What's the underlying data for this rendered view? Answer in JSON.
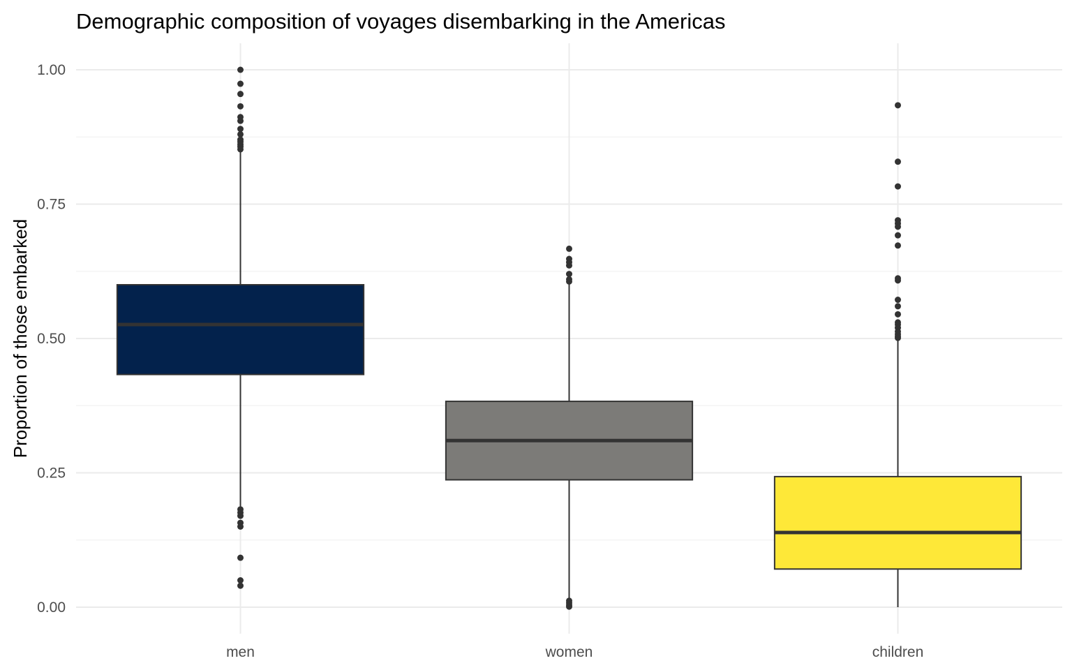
{
  "chart_data": {
    "type": "boxplot",
    "title": "Demographic composition of voyages disembarking in the Americas",
    "xlabel": "",
    "ylabel": "Proportion of those embarked",
    "ylim": [
      -0.045,
      1.045
    ],
    "yticks": [
      0,
      0.25,
      0.5,
      0.75,
      1
    ],
    "ytick_labels": [
      "0.00",
      "0.25",
      "0.50",
      "0.75",
      "1.00"
    ],
    "grid": "major and minor horizontal, major vertical",
    "legend": "none",
    "categories": [
      "men",
      "women",
      "children"
    ],
    "series": [
      {
        "category": "men",
        "color": "#03224c",
        "q1": 0.433,
        "median": 0.526,
        "q3": 0.6,
        "whisker_low": 0.183,
        "whisker_high": 0.85,
        "outliers": [
          1.0,
          0.974,
          0.955,
          0.932,
          0.912,
          0.905,
          0.89,
          0.88,
          0.87,
          0.866,
          0.861,
          0.857,
          0.852,
          0.182,
          0.176,
          0.17,
          0.157,
          0.15,
          0.092,
          0.05,
          0.04
        ]
      },
      {
        "category": "women",
        "color": "#7c7b78",
        "q1": 0.237,
        "median": 0.31,
        "q3": 0.383,
        "whisker_low": 0.012,
        "whisker_high": 0.605,
        "outliers": [
          0.667,
          0.648,
          0.642,
          0.636,
          0.62,
          0.61,
          0.606,
          0.012,
          0.008,
          0.004,
          0.001
        ]
      },
      {
        "category": "children",
        "color": "#fee838",
        "q1": 0.071,
        "median": 0.139,
        "q3": 0.243,
        "whisker_low": 0.0,
        "whisker_high": 0.5,
        "outliers": [
          0.934,
          0.829,
          0.783,
          0.72,
          0.714,
          0.708,
          0.692,
          0.673,
          0.612,
          0.608,
          0.572,
          0.56,
          0.545,
          0.53,
          0.526,
          0.52,
          0.513,
          0.508,
          0.504,
          0.501
        ]
      }
    ]
  }
}
